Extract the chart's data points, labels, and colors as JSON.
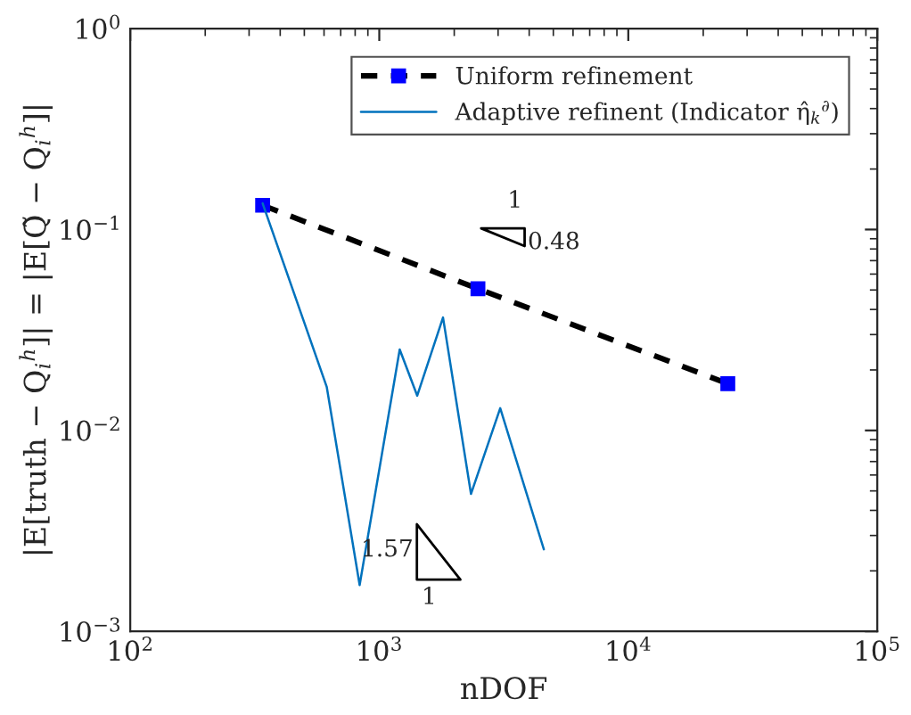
{
  "chart_data": {
    "type": "line",
    "xlabel": "nDOF",
    "ylabel": "|E[truth − Q$_{i}$$^{h}$]| = |E[Q̃ − Q$_{i}$$^{h}$]|",
    "log": "xy",
    "xlim": [
      100,
      100000
    ],
    "ylim": [
      0.001,
      1
    ],
    "xticks": [
      {
        "value": 100,
        "label": "10$^{2}$"
      },
      {
        "value": 1000,
        "label": "10$^{3}$"
      },
      {
        "value": 10000,
        "label": "10$^{4}$"
      },
      {
        "value": 100000,
        "label": "10$^{5}$"
      }
    ],
    "yticks": [
      {
        "value": 0.001,
        "label": "10$^{−3}$"
      },
      {
        "value": 0.01,
        "label": "10$^{−2}$"
      },
      {
        "value": 0.1,
        "label": "10$^{−1}$"
      },
      {
        "value": 1,
        "label": "10$^{0}$"
      }
    ],
    "grid": false,
    "legend": "top right",
    "series": [
      {
        "name": "Uniform refinement",
        "color": "#000000",
        "marker": "square",
        "line_style": "dashed",
        "x": [
          340,
          2490,
          25100
        ],
        "values": [
          0.132,
          0.0507,
          0.0171
        ]
      },
      {
        "name": "Adaptive refinent (Indicator η̂$_{k}$$^{∂}$)",
        "color": "#0072bd",
        "marker": "none",
        "line_style": "solid",
        "x": [
          340,
          615,
          834,
          1208,
          1420,
          1803,
          2335,
          3060,
          4580
        ],
        "values": [
          0.135,
          0.0165,
          0.0017,
          0.0253,
          0.0149,
          0.0365,
          0.00483,
          0.0129,
          0.00256
        ]
      }
    ],
    "annotations": [
      "1",
      "0.48",
      "1.57",
      "1"
    ]
  }
}
